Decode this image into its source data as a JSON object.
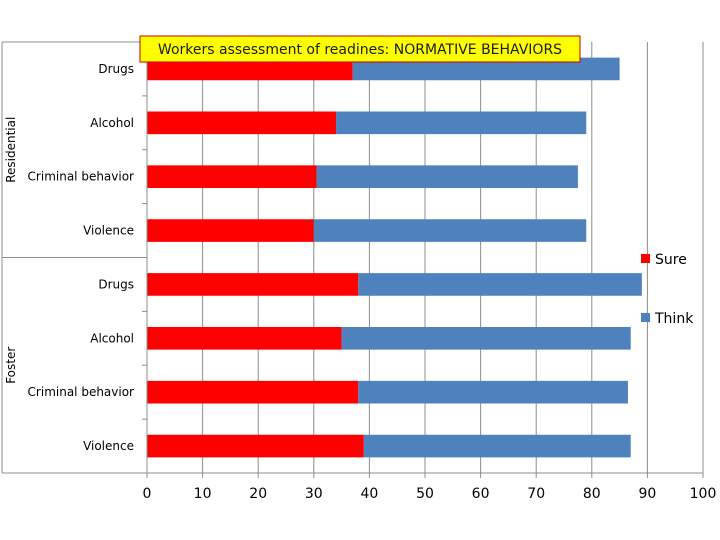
{
  "chart_data": {
    "type": "bar",
    "orientation": "horizontal",
    "stacked": true,
    "title": "Workers assessment of readines: NORMATIVE BEHAVIORS",
    "groups": [
      {
        "label": "Residential",
        "categories": [
          "Drugs",
          "Alcohol",
          "Criminal behavior",
          "Violence"
        ]
      },
      {
        "label": "Foster",
        "categories": [
          "Drugs",
          "Alcohol",
          "Criminal behavior",
          "Violence"
        ]
      }
    ],
    "series": [
      {
        "name": "Sure",
        "color": "#ff0000",
        "values": [
          37,
          34,
          30.5,
          30,
          38,
          35,
          38,
          39
        ]
      },
      {
        "name": "Think",
        "color": "#4f81bd",
        "values": [
          48,
          45,
          47,
          49,
          51,
          52,
          48.5,
          48
        ]
      }
    ],
    "xlim": [
      0,
      100
    ],
    "xticks": [
      "0",
      "10",
      "20",
      "30",
      "40",
      "50",
      "60",
      "70",
      "80",
      "90",
      "100"
    ],
    "grid": true,
    "legend_position": "right"
  }
}
